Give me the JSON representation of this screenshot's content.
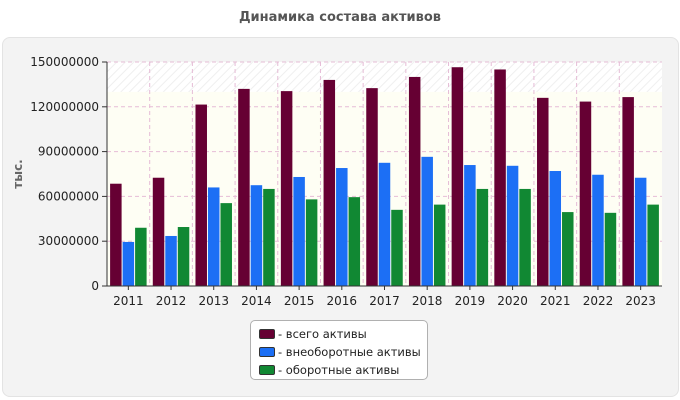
{
  "chart_data": {
    "type": "bar",
    "title": "Динамика состава активов",
    "xlabel": "",
    "ylabel": "тыс.",
    "ylim": [
      0,
      150000000
    ],
    "yticks": [
      "0",
      "30000000",
      "60000000",
      "90000000",
      "120000000",
      "150000000"
    ],
    "categories": [
      "2011",
      "2012",
      "2013",
      "2014",
      "2015",
      "2016",
      "2017",
      "2018",
      "2019",
      "2020",
      "2021",
      "2022",
      "2023"
    ],
    "series": [
      {
        "name": "- всего активы",
        "color": "#660033",
        "values": [
          68500000,
          72500000,
          121500000,
          132000000,
          130500000,
          138000000,
          132500000,
          140000000,
          146500000,
          145000000,
          126000000,
          123500000,
          126500000
        ]
      },
      {
        "name": "- внеоборотные активы",
        "color": "#1c6ff5",
        "values": [
          29500000,
          33500000,
          66000000,
          67500000,
          73000000,
          79000000,
          82500000,
          86500000,
          81000000,
          80500000,
          77000000,
          74500000,
          72500000
        ]
      },
      {
        "name": "- оборотные активы",
        "color": "#118833",
        "values": [
          39000000,
          39500000,
          55500000,
          65000000,
          58000000,
          59500000,
          51000000,
          54500000,
          65000000,
          65000000,
          49500000,
          49000000,
          54500000
        ]
      }
    ]
  }
}
